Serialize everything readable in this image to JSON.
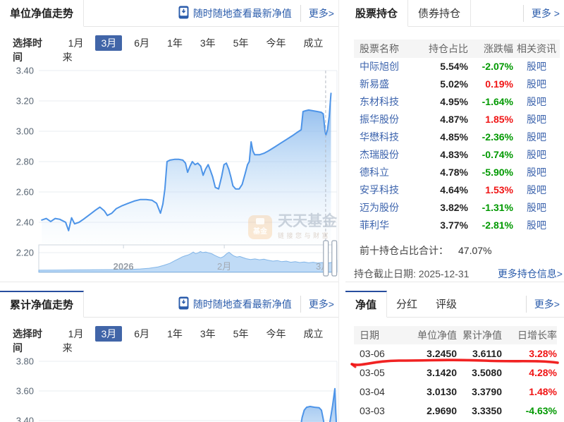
{
  "colors": {
    "accent_blue": "#2b5cab",
    "link_blue": "#3d64ad",
    "tab_active_border": "#274d9e",
    "time_active_bg": "#4165a8",
    "up_red": "#f01414",
    "down_green": "#009900",
    "chart_line_blue": "#4d94e8",
    "annotation_red": "#f01010"
  },
  "promo": {
    "text": "随时随地查看最新净值"
  },
  "time_selector": {
    "label": "选择时间",
    "options": [
      "1月",
      "3月",
      "6月",
      "1年",
      "3年",
      "5年",
      "今年",
      "成立来"
    ],
    "active": "3月",
    "active_index": 1
  },
  "panels": {
    "unit_nav": {
      "title": "单位净值走势",
      "more": "更多>"
    },
    "cumulative_nav": {
      "title": "累计净值走势",
      "more": "更多>"
    },
    "holdings": {
      "tabs": [
        "股票持仓",
        "债券持仓"
      ],
      "active_tab": "股票持仓",
      "more": "更多 >",
      "columns": [
        "股票名称",
        "持仓占比",
        "涨跌幅",
        "相关资讯"
      ],
      "rows": [
        {
          "name": "中际旭创",
          "weight": "5.54%",
          "change": "-2.07%",
          "dir": "down",
          "link": "股吧"
        },
        {
          "name": "新易盛",
          "weight": "5.02%",
          "change": "0.19%",
          "dir": "up",
          "link": "股吧"
        },
        {
          "name": "东材科技",
          "weight": "4.95%",
          "change": "-1.64%",
          "dir": "down",
          "link": "股吧"
        },
        {
          "name": "振华股份",
          "weight": "4.87%",
          "change": "1.85%",
          "dir": "up",
          "link": "股吧"
        },
        {
          "name": "华懋科技",
          "weight": "4.85%",
          "change": "-2.36%",
          "dir": "down",
          "link": "股吧"
        },
        {
          "name": "杰瑞股份",
          "weight": "4.83%",
          "change": "-0.74%",
          "dir": "down",
          "link": "股吧"
        },
        {
          "name": "德科立",
          "weight": "4.78%",
          "change": "-5.90%",
          "dir": "down",
          "link": "股吧"
        },
        {
          "name": "安孚科技",
          "weight": "4.64%",
          "change": "1.53%",
          "dir": "up",
          "link": "股吧"
        },
        {
          "name": "迈为股份",
          "weight": "3.82%",
          "change": "-1.31%",
          "dir": "down",
          "link": "股吧"
        },
        {
          "name": "菲利华",
          "weight": "3.77%",
          "change": "-2.81%",
          "dir": "down",
          "link": "股吧"
        }
      ],
      "total_label": "前十持仓占比合计：",
      "total_value": "47.07%",
      "as_of": "持仓截止日期: 2025-12-31",
      "more_holdings": "更多持仓信息>"
    },
    "nav_history": {
      "tabs": [
        "净值",
        "分红",
        "评级"
      ],
      "active_tab": "净值",
      "more": "更多>",
      "columns": [
        "日期",
        "单位净值",
        "累计净值",
        "日增长率"
      ],
      "rows": [
        {
          "date": "03-06",
          "nav": "3.2450",
          "cum": "3.6110",
          "growth": "3.28%",
          "dir": "up",
          "annotated": true
        },
        {
          "date": "03-05",
          "nav": "3.1420",
          "cum": "3.5080",
          "growth": "4.28%",
          "dir": "up",
          "annotated": false
        },
        {
          "date": "03-04",
          "nav": "3.0130",
          "cum": "3.3790",
          "growth": "1.48%",
          "dir": "up",
          "annotated": false
        },
        {
          "date": "03-03",
          "nav": "2.9690",
          "cum": "3.3350",
          "growth": "-4.63%",
          "dir": "down",
          "annotated": false
        }
      ]
    }
  },
  "watermark": {
    "logo_text": "基金",
    "title": "天天基金",
    "subtitle": "链接您与财富"
  },
  "chart_data": [
    {
      "id": "unit_nav_trend",
      "type": "area",
      "title": "单位净值走势",
      "period_selected": "3月",
      "ylim": [
        2.2,
        3.4
      ],
      "yticks": [
        3.4,
        3.2,
        3.0,
        2.8,
        2.6,
        2.4,
        2.2
      ],
      "grid": true,
      "latest_value": 3.245,
      "marker_line_x_pct": 96.2,
      "x_note": "3-month window Dec 2025 - Mar 2026; x as percent of window",
      "series": [
        {
          "name": "单位净值",
          "points": [
            [
              1,
              2.415
            ],
            [
              2.5,
              2.425
            ],
            [
              4,
              2.405
            ],
            [
              5.5,
              2.425
            ],
            [
              7,
              2.42
            ],
            [
              8,
              2.41
            ],
            [
              9,
              2.4
            ],
            [
              10,
              2.345
            ],
            [
              11,
              2.43
            ],
            [
              12,
              2.39
            ],
            [
              13.5,
              2.4
            ],
            [
              15,
              2.42
            ],
            [
              17,
              2.45
            ],
            [
              19,
              2.48
            ],
            [
              20.5,
              2.5
            ],
            [
              22,
              2.475
            ],
            [
              23,
              2.445
            ],
            [
              24.5,
              2.46
            ],
            [
              26,
              2.49
            ],
            [
              28,
              2.51
            ],
            [
              30,
              2.525
            ],
            [
              32,
              2.54
            ],
            [
              34,
              2.55
            ],
            [
              36,
              2.55
            ],
            [
              38,
              2.545
            ],
            [
              39.5,
              2.525
            ],
            [
              40.8,
              2.46
            ],
            [
              41.6,
              2.52
            ],
            [
              42.3,
              2.62
            ],
            [
              43,
              2.8
            ],
            [
              44,
              2.81
            ],
            [
              45.5,
              2.815
            ],
            [
              47,
              2.815
            ],
            [
              48.3,
              2.81
            ],
            [
              49.2,
              2.79
            ],
            [
              49.9,
              2.73
            ],
            [
              50.7,
              2.77
            ],
            [
              51.5,
              2.8
            ],
            [
              52.4,
              2.78
            ],
            [
              53.3,
              2.79
            ],
            [
              54.3,
              2.77
            ],
            [
              55.1,
              2.71
            ],
            [
              55.9,
              2.75
            ],
            [
              56.8,
              2.78
            ],
            [
              57.6,
              2.74
            ],
            [
              58.3,
              2.7
            ],
            [
              59.2,
              2.63
            ],
            [
              60.3,
              2.62
            ],
            [
              61.3,
              2.7
            ],
            [
              62.1,
              2.78
            ],
            [
              62.9,
              2.79
            ],
            [
              63.7,
              2.75
            ],
            [
              64.4,
              2.7
            ],
            [
              65.1,
              2.64
            ],
            [
              66,
              2.62
            ],
            [
              67.2,
              2.62
            ],
            [
              68.2,
              2.65
            ],
            [
              69.2,
              2.72
            ],
            [
              70,
              2.78
            ],
            [
              70.6,
              2.8
            ],
            [
              71.2,
              2.93
            ],
            [
              71.8,
              2.87
            ],
            [
              72.4,
              2.845
            ],
            [
              74,
              2.845
            ],
            [
              75.5,
              2.855
            ],
            [
              77,
              2.87
            ],
            [
              79,
              2.895
            ],
            [
              81,
              2.92
            ],
            [
              83,
              2.945
            ],
            [
              85,
              2.97
            ],
            [
              86.8,
              2.995
            ],
            [
              88,
              3.01
            ],
            [
              88.6,
              3.13
            ],
            [
              89.4,
              3.135
            ],
            [
              90.5,
              3.14
            ],
            [
              92,
              3.135
            ],
            [
              93.5,
              3.13
            ],
            [
              94.7,
              3.125
            ],
            [
              95.4,
              3.115
            ],
            [
              96,
              3.0
            ],
            [
              96.3,
              2.975
            ],
            [
              96.8,
              3.01
            ],
            [
              97.4,
              3.1
            ],
            [
              98,
              3.25
            ]
          ]
        }
      ],
      "navigator": {
        "labels": [
          "2026",
          "2月",
          "3月"
        ],
        "label_x_pct": [
          28.4,
          62.2,
          95.3
        ],
        "points": [
          [
            0,
            0.08
          ],
          [
            6,
            0.085
          ],
          [
            12,
            0.09
          ],
          [
            18,
            0.095
          ],
          [
            24,
            0.1
          ],
          [
            28,
            0.105
          ],
          [
            31,
            0.11
          ],
          [
            34,
            0.125
          ],
          [
            37,
            0.15
          ],
          [
            40,
            0.2
          ],
          [
            42,
            0.26
          ],
          [
            44,
            0.33
          ],
          [
            45.5,
            0.42
          ],
          [
            47,
            0.5
          ],
          [
            48,
            0.56
          ],
          [
            49,
            0.6
          ],
          [
            50,
            0.63
          ],
          [
            51,
            0.68
          ],
          [
            51.8,
            0.74
          ],
          [
            52.6,
            0.68
          ],
          [
            53.4,
            0.71
          ],
          [
            54.2,
            0.76
          ],
          [
            55,
            0.72
          ],
          [
            56,
            0.74
          ],
          [
            57,
            0.71
          ],
          [
            58,
            0.68
          ],
          [
            59,
            0.62
          ],
          [
            60,
            0.57
          ],
          [
            61,
            0.53
          ],
          [
            62,
            0.58
          ],
          [
            63,
            0.68
          ],
          [
            63.8,
            0.73
          ],
          [
            64.6,
            0.66
          ],
          [
            65.4,
            0.6
          ],
          [
            66.4,
            0.56
          ],
          [
            67.4,
            0.58
          ],
          [
            68.4,
            0.54
          ],
          [
            69.5,
            0.5
          ],
          [
            71,
            0.47
          ],
          [
            72.5,
            0.49
          ],
          [
            74,
            0.46
          ],
          [
            75.5,
            0.48
          ],
          [
            77,
            0.44
          ],
          [
            78.5,
            0.41
          ],
          [
            80,
            0.43
          ],
          [
            81.5,
            0.39
          ],
          [
            83,
            0.41
          ],
          [
            84.5,
            0.37
          ],
          [
            86,
            0.39
          ],
          [
            87.5,
            0.36
          ],
          [
            89,
            0.38
          ],
          [
            90.5,
            0.35
          ],
          [
            92,
            0.37
          ],
          [
            93.5,
            0.34
          ],
          [
            95,
            0.36
          ],
          [
            96.5,
            0.33
          ],
          [
            98,
            0.36
          ],
          [
            99,
            0.4
          ],
          [
            100,
            0.44
          ]
        ]
      }
    },
    {
      "id": "cumulative_nav_trend",
      "type": "area",
      "title": "累计净值走势",
      "period_selected": "3月",
      "ylim_top": 3.8,
      "yticks": [
        3.8,
        3.6,
        3.4
      ],
      "grid": true,
      "latest_value": 3.611,
      "series": [
        {
          "name": "累计净值",
          "points": [
            [
              0,
              3.26
            ],
            [
              70,
              3.27
            ],
            [
              80,
              3.28
            ],
            [
              85,
              3.3
            ],
            [
              87.5,
              3.32
            ],
            [
              88.3,
              3.42
            ],
            [
              89,
              3.47
            ],
            [
              89.8,
              3.49
            ],
            [
              91,
              3.495
            ],
            [
              92.5,
              3.49
            ],
            [
              94,
              3.487
            ],
            [
              94.8,
              3.47
            ],
            [
              95.4,
              3.41
            ],
            [
              96,
              3.34
            ],
            [
              96.6,
              3.3
            ],
            [
              97.1,
              3.32
            ],
            [
              97.7,
              3.4
            ],
            [
              98.5,
              3.5
            ],
            [
              99.3,
              3.615
            ],
            [
              99.6,
              3.45
            ],
            [
              100,
              3.3
            ]
          ]
        }
      ]
    }
  ]
}
